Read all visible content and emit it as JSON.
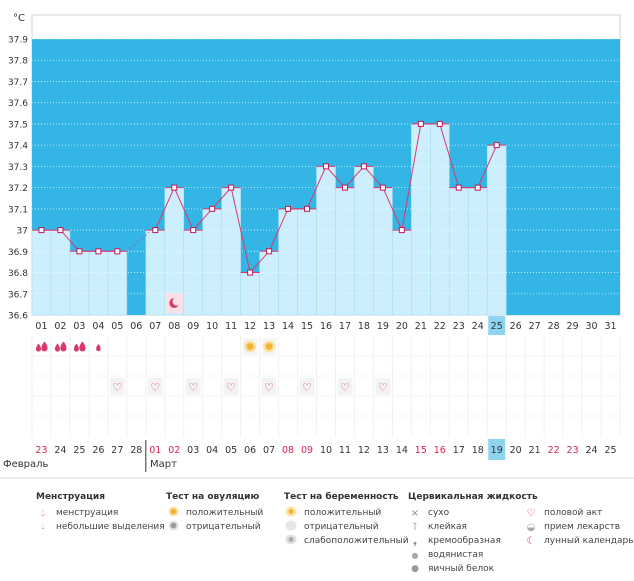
{
  "chart_data": {
    "type": "line",
    "y_unit": "°C",
    "ylim": [
      36.6,
      37.9
    ],
    "y_ticks": [
      "36.6",
      "36.7",
      "36.8",
      "36.9",
      "37",
      "37.1",
      "37.2",
      "37.3",
      "37.4",
      "37.5",
      "37.6",
      "37.7",
      "37.8",
      "37.9"
    ],
    "days": [
      "01",
      "02",
      "03",
      "04",
      "05",
      "06",
      "07",
      "08",
      "09",
      "10",
      "11",
      "12",
      "13",
      "14",
      "15",
      "16",
      "17",
      "18",
      "19",
      "20",
      "21",
      "22",
      "23",
      "24",
      "25",
      "26",
      "27",
      "28",
      "29",
      "30",
      "31"
    ],
    "temperatures": [
      37.0,
      37.0,
      36.9,
      36.9,
      36.9,
      null,
      37.0,
      37.2,
      37.0,
      37.1,
      37.2,
      36.8,
      36.9,
      37.1,
      37.1,
      37.3,
      37.2,
      37.3,
      37.2,
      37.0,
      37.5,
      37.5,
      37.2,
      37.2,
      37.4,
      null,
      null,
      null,
      null,
      null,
      null
    ],
    "current_day": "25",
    "dates": [
      "23",
      "24",
      "25",
      "26",
      "27",
      "28",
      "01",
      "02",
      "03",
      "04",
      "05",
      "06",
      "07",
      "08",
      "09",
      "10",
      "11",
      "12",
      "13",
      "14",
      "15",
      "16",
      "17",
      "18",
      "19",
      "20",
      "21",
      "22",
      "23",
      "24",
      "25"
    ],
    "date_red": [
      true,
      false,
      false,
      false,
      false,
      false,
      true,
      true,
      false,
      false,
      false,
      false,
      false,
      true,
      true,
      false,
      false,
      false,
      false,
      false,
      true,
      true,
      false,
      false,
      false,
      false,
      false,
      true,
      true,
      false,
      false
    ],
    "current_date": "19",
    "months": [
      "Февраль",
      "Март"
    ],
    "menstruation_days": [
      "01",
      "02",
      "03"
    ],
    "light_spotting_days": [
      "04"
    ],
    "ovulation_positive_days": [
      "12",
      "13"
    ],
    "intercourse_days": [
      "05",
      "07",
      "09",
      "11",
      "13",
      "15",
      "17",
      "19"
    ],
    "lunar_day": "08"
  },
  "legend": {
    "menstruation": {
      "title": "Менструация",
      "items": [
        {
          "icon": "menstruation-drop",
          "label": "менструация"
        },
        {
          "icon": "spotting-drop",
          "label": "небольшие выделения"
        }
      ]
    },
    "ovulation_test": {
      "title": "Тест на овуляцию",
      "items": [
        {
          "icon": "positive-dot",
          "label": "положительный"
        },
        {
          "icon": "negative-dot",
          "label": "отрицательный"
        }
      ]
    },
    "pregnancy_test": {
      "title": "Тест на беременность",
      "items": [
        {
          "icon": "preg-positive",
          "label": "положительный"
        },
        {
          "icon": "preg-negative",
          "label": "отрицательный"
        },
        {
          "icon": "preg-weak",
          "label": "слабоположительный"
        }
      ]
    },
    "cervical": {
      "title": "Цервикальная жидкость",
      "items": [
        {
          "icon": "dry",
          "glyph": "×",
          "label": "сухо"
        },
        {
          "icon": "sticky",
          "glyph": "⊺",
          "label": "клейкая"
        },
        {
          "icon": "creamy",
          "glyph": "❟",
          "label": "кремообразная"
        },
        {
          "icon": "watery",
          "glyph": "●",
          "label": "водянистая"
        },
        {
          "icon": "egg-white",
          "glyph": "●",
          "label": "яичный белок"
        }
      ]
    },
    "other": {
      "items": [
        {
          "icon": "heart",
          "glyph": "♡",
          "label": "половой акт"
        },
        {
          "icon": "pill",
          "glyph": "◒",
          "label": "прием лекарств"
        },
        {
          "icon": "moon",
          "glyph": "☾",
          "label": "лунный календарь"
        }
      ]
    }
  },
  "colors": {
    "band": "#33b5e5",
    "bar": "#cdeefc",
    "bar_edge": "#a9dcf3",
    "line": "#d83a6e",
    "marker": "#c2185b",
    "red_text": "#d8224e",
    "highlight": "#8ed3ef"
  }
}
